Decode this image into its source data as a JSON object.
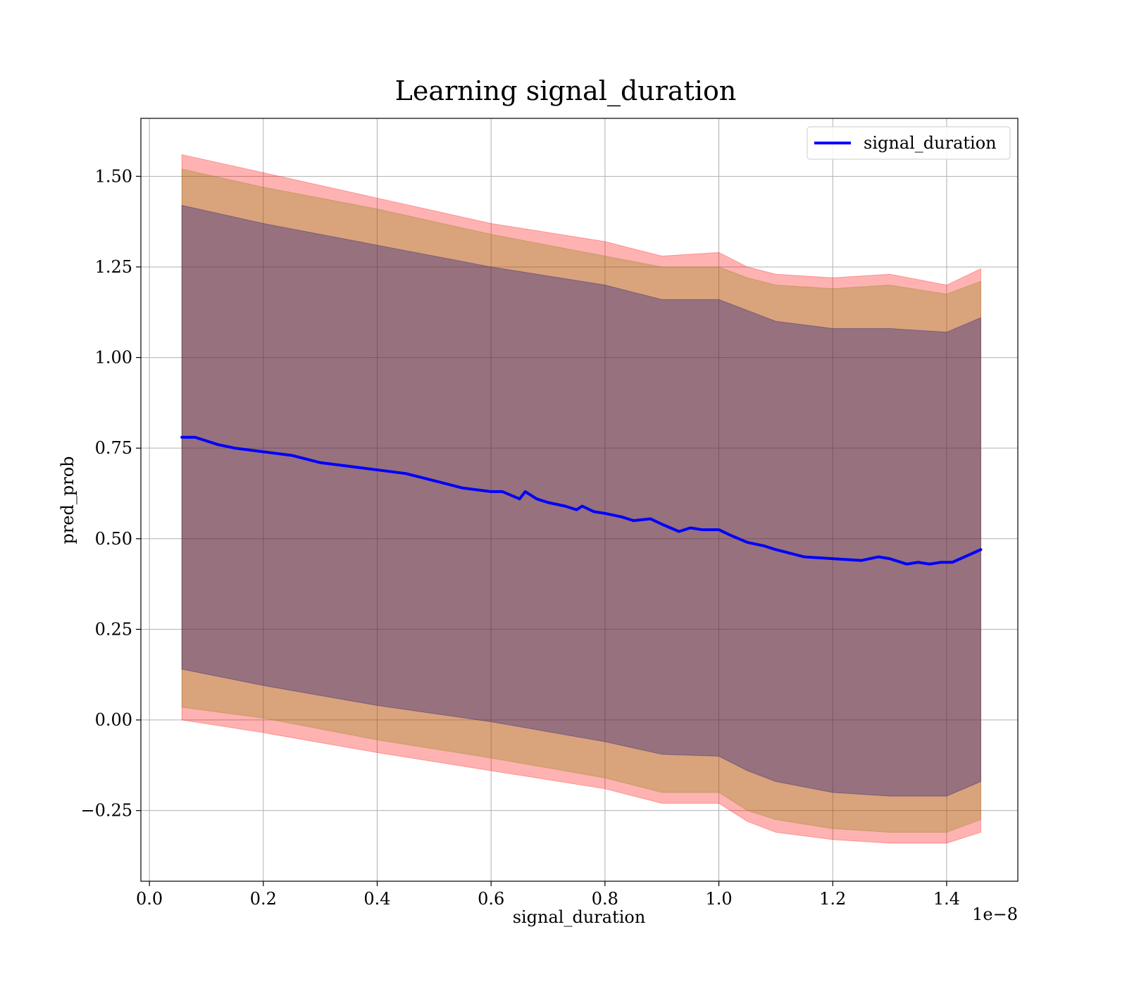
{
  "chart_data": {
    "type": "line",
    "title": "Learning signal_duration",
    "xlabel": "signal_duration",
    "ylabel": "pred_prob",
    "x_offset_label": "1e−8",
    "xlim": [
      -0.015,
      1.525
    ],
    "ylim": [
      -0.445,
      1.66
    ],
    "x_ticks": [
      0.0,
      0.2,
      0.4,
      0.6,
      0.8,
      1.0,
      1.2,
      1.4
    ],
    "x_tick_labels": [
      "0.0",
      "0.2",
      "0.4",
      "0.6",
      "0.8",
      "1.0",
      "1.2",
      "1.4"
    ],
    "y_ticks": [
      -0.25,
      0.0,
      0.25,
      0.5,
      0.75,
      1.0,
      1.25,
      1.5
    ],
    "y_tick_labels": [
      "−0.25",
      "0.00",
      "0.25",
      "0.50",
      "0.75",
      "1.00",
      "1.25",
      "1.50"
    ],
    "grid": true,
    "legend_position": "top-right",
    "series": [
      {
        "name": "signal_duration",
        "color": "#0000ff",
        "x": [
          0.057,
          0.08,
          0.1,
          0.12,
          0.15,
          0.2,
          0.25,
          0.3,
          0.35,
          0.4,
          0.45,
          0.5,
          0.55,
          0.6,
          0.62,
          0.65,
          0.66,
          0.68,
          0.7,
          0.73,
          0.75,
          0.76,
          0.78,
          0.8,
          0.83,
          0.85,
          0.88,
          0.9,
          0.93,
          0.95,
          0.97,
          1.0,
          1.02,
          1.05,
          1.08,
          1.1,
          1.15,
          1.2,
          1.25,
          1.28,
          1.3,
          1.33,
          1.35,
          1.37,
          1.39,
          1.41,
          1.46
        ],
        "y": [
          0.78,
          0.78,
          0.77,
          0.76,
          0.75,
          0.74,
          0.73,
          0.71,
          0.7,
          0.69,
          0.68,
          0.66,
          0.64,
          0.63,
          0.63,
          0.61,
          0.63,
          0.61,
          0.6,
          0.59,
          0.58,
          0.59,
          0.575,
          0.57,
          0.56,
          0.55,
          0.555,
          0.54,
          0.52,
          0.53,
          0.525,
          0.525,
          0.51,
          0.49,
          0.48,
          0.47,
          0.45,
          0.445,
          0.44,
          0.45,
          0.445,
          0.43,
          0.435,
          0.43,
          0.435,
          0.435,
          0.47
        ]
      }
    ],
    "bands": [
      {
        "color": "#ff0000",
        "opacity": 0.3,
        "x": [
          0.057,
          0.2,
          0.4,
          0.6,
          0.8,
          0.9,
          1.0,
          1.05,
          1.1,
          1.2,
          1.3,
          1.4,
          1.46
        ],
        "upper": [
          1.56,
          1.51,
          1.44,
          1.37,
          1.32,
          1.28,
          1.29,
          1.25,
          1.23,
          1.22,
          1.23,
          1.2,
          1.245
        ],
        "lower": [
          0.0,
          -0.035,
          -0.09,
          -0.14,
          -0.19,
          -0.23,
          -0.23,
          -0.28,
          -0.31,
          -0.33,
          -0.34,
          -0.34,
          -0.31
        ]
      },
      {
        "color": "#808000",
        "opacity": 0.3,
        "x": [
          0.057,
          0.2,
          0.4,
          0.6,
          0.8,
          0.9,
          1.0,
          1.05,
          1.1,
          1.2,
          1.3,
          1.4,
          1.46
        ],
        "upper": [
          1.52,
          1.47,
          1.41,
          1.34,
          1.28,
          1.25,
          1.25,
          1.22,
          1.2,
          1.19,
          1.2,
          1.175,
          1.21
        ],
        "lower": [
          0.035,
          0.005,
          -0.055,
          -0.105,
          -0.16,
          -0.2,
          -0.2,
          -0.25,
          -0.275,
          -0.3,
          -0.31,
          -0.31,
          -0.275
        ]
      },
      {
        "color": "#000080",
        "opacity": 0.3,
        "x": [
          0.057,
          0.2,
          0.4,
          0.6,
          0.8,
          0.9,
          1.0,
          1.05,
          1.1,
          1.2,
          1.3,
          1.4,
          1.46
        ],
        "upper": [
          1.42,
          1.37,
          1.31,
          1.25,
          1.2,
          1.16,
          1.16,
          1.13,
          1.1,
          1.08,
          1.08,
          1.07,
          1.11
        ],
        "lower": [
          0.14,
          0.095,
          0.04,
          -0.005,
          -0.06,
          -0.095,
          -0.1,
          -0.14,
          -0.17,
          -0.2,
          -0.21,
          -0.21,
          -0.17
        ]
      }
    ]
  }
}
